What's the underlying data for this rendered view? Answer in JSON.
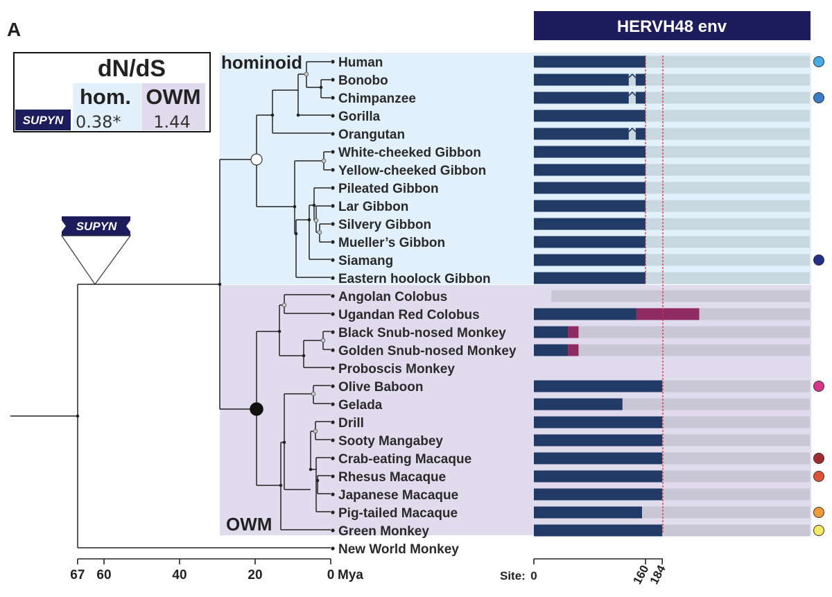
{
  "panel_label": "A",
  "header": {
    "title": "HERVH48 env"
  },
  "clades": {
    "hominoid": "hominoid",
    "owm": "OWM"
  },
  "dnds": {
    "title": "dN/dS",
    "col_hom": "hom.",
    "col_owm": "OWM",
    "gene": "SUPYN",
    "hom_value": "0.38*",
    "owm_value": "1.44"
  },
  "event_label": "SUPYN",
  "time_axis": {
    "ticks": [
      "67",
      "60",
      "40",
      "20",
      "0"
    ],
    "unit": "Mya"
  },
  "site_axis": {
    "prefix": "Site:",
    "ticks": [
      "0",
      "160",
      "184"
    ]
  },
  "colors": {
    "navy": "#213b66",
    "header": "#1d1c5c",
    "magenta": "#8f2a63",
    "hom_bg": "#e1f0fa",
    "owm_bg": "#e0dcee",
    "hom_track": "#c9d7e0",
    "owm_track": "#c9c6d6"
  },
  "species": [
    {
      "name": "Human",
      "intact": 160,
      "gap": null,
      "magenta": null,
      "track_start": 0,
      "dot": "#45aee6"
    },
    {
      "name": "Bonobo",
      "intact": 160,
      "gap": [
        136,
        146
      ],
      "magenta": null,
      "track_start": 0,
      "dot": null
    },
    {
      "name": "Chimpanzee",
      "intact": 160,
      "gap": [
        136,
        146
      ],
      "magenta": null,
      "track_start": 0,
      "dot": "#3a7fc6"
    },
    {
      "name": "Gorilla",
      "intact": 160,
      "gap": null,
      "magenta": null,
      "track_start": 0,
      "dot": null
    },
    {
      "name": "Orangutan",
      "intact": 160,
      "gap": [
        136,
        146
      ],
      "magenta": null,
      "track_start": 0,
      "dot": null
    },
    {
      "name": "White-cheeked Gibbon",
      "intact": 160,
      "gap": null,
      "magenta": null,
      "track_start": 0,
      "dot": null
    },
    {
      "name": "Yellow-cheeked Gibbon",
      "intact": 160,
      "gap": null,
      "magenta": null,
      "track_start": 0,
      "dot": null
    },
    {
      "name": "Pileated Gibbon",
      "intact": 160,
      "gap": null,
      "magenta": null,
      "track_start": 0,
      "dot": null
    },
    {
      "name": "Lar Gibbon",
      "intact": 160,
      "gap": null,
      "magenta": null,
      "track_start": 0,
      "dot": null
    },
    {
      "name": "Silvery Gibbon",
      "intact": 160,
      "gap": null,
      "magenta": null,
      "track_start": 0,
      "dot": null
    },
    {
      "name": "Mueller’s Gibbon",
      "intact": 160,
      "gap": null,
      "magenta": null,
      "track_start": 0,
      "dot": null
    },
    {
      "name": "Siamang",
      "intact": 160,
      "gap": null,
      "magenta": null,
      "track_start": 0,
      "dot": "#232f86"
    },
    {
      "name": "Eastern hoolock Gibbon",
      "intact": 160,
      "gap": null,
      "magenta": null,
      "track_start": 0,
      "dot": null
    },
    {
      "name": "Angolan Colobus",
      "intact": null,
      "gap": null,
      "magenta": null,
      "track_start": 25,
      "dot": null
    },
    {
      "name": "Ugandan Red Colobus",
      "intact": 147,
      "gap": null,
      "magenta": [
        147,
        237
      ],
      "track_start": 0,
      "dot": null
    },
    {
      "name": "Black Snub-nosed Monkey",
      "intact": 49,
      "gap": null,
      "magenta": [
        49,
        64
      ],
      "track_start": 0,
      "dot": null
    },
    {
      "name": "Golden Snub-nosed Monkey",
      "intact": 49,
      "gap": null,
      "magenta": [
        49,
        64
      ],
      "track_start": 0,
      "dot": null
    },
    {
      "name": "Proboscis Monkey",
      "intact": null,
      "gap": null,
      "magenta": null,
      "track_start": null,
      "dot": null
    },
    {
      "name": "Olive Baboon",
      "intact": 184,
      "gap": null,
      "magenta": null,
      "track_start": 0,
      "dot": "#d6378c"
    },
    {
      "name": "Gelada",
      "intact": 127,
      "gap": null,
      "magenta": null,
      "track_start": 0,
      "dot": null
    },
    {
      "name": "Drill",
      "intact": 184,
      "gap": null,
      "magenta": null,
      "track_start": 0,
      "dot": null
    },
    {
      "name": "Sooty Mangabey",
      "intact": 184,
      "gap": null,
      "magenta": null,
      "track_start": 0,
      "dot": null
    },
    {
      "name": "Crab-eating Macaque",
      "intact": 184,
      "gap": null,
      "magenta": null,
      "track_start": 0,
      "dot": "#a12c2f"
    },
    {
      "name": "Rhesus Macaque",
      "intact": 184,
      "gap": null,
      "magenta": null,
      "track_start": 0,
      "dot": "#de5238"
    },
    {
      "name": "Japanese Macaque",
      "intact": 184,
      "gap": null,
      "magenta": null,
      "track_start": 0,
      "dot": null
    },
    {
      "name": "Pig-tailed Macaque",
      "intact": 155,
      "gap": null,
      "magenta": null,
      "track_start": 0,
      "dot": "#ef9a3a"
    },
    {
      "name": "Green Monkey",
      "intact": 184,
      "gap": null,
      "magenta": null,
      "track_start": 0,
      "dot": "#f4e960"
    },
    {
      "name": "New World Monkey",
      "intact": null,
      "gap": null,
      "magenta": null,
      "track_start": null,
      "dot": null
    }
  ]
}
